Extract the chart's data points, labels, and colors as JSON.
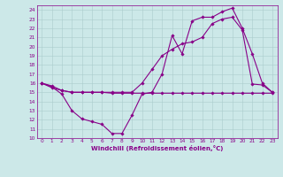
{
  "xlabel": "Windchill (Refroidissement éolien,°C)",
  "xlim": [
    -0.5,
    23.5
  ],
  "ylim": [
    10,
    24.5
  ],
  "yticks": [
    10,
    11,
    12,
    13,
    14,
    15,
    16,
    17,
    18,
    19,
    20,
    21,
    22,
    23,
    24
  ],
  "xticks": [
    0,
    1,
    2,
    3,
    4,
    5,
    6,
    7,
    8,
    9,
    10,
    11,
    12,
    13,
    14,
    15,
    16,
    17,
    18,
    19,
    20,
    21,
    22,
    23
  ],
  "bg_color": "#cce8e8",
  "line_color": "#880088",
  "grid_color": "#aacccc",
  "line1_x": [
    0,
    1,
    2,
    3,
    4,
    5,
    6,
    7,
    8,
    9,
    10,
    11,
    12,
    13,
    14,
    15,
    16,
    17,
    18,
    19,
    20,
    21,
    22,
    23
  ],
  "line1_y": [
    16,
    15.6,
    14.8,
    13.0,
    12.1,
    11.8,
    11.5,
    10.5,
    10.5,
    12.5,
    14.8,
    15.0,
    17.0,
    21.2,
    19.2,
    22.8,
    23.2,
    23.2,
    23.8,
    24.2,
    22.0,
    19.2,
    16.0,
    15.0
  ],
  "line2_x": [
    0,
    1,
    2,
    3,
    4,
    5,
    6,
    7,
    8,
    9,
    10,
    11,
    12,
    13,
    14,
    15,
    16,
    17,
    18,
    19,
    20,
    21,
    22,
    23
  ],
  "line2_y": [
    16,
    15.5,
    15.2,
    15.0,
    15.0,
    15.0,
    15.0,
    14.9,
    14.9,
    14.9,
    14.9,
    14.9,
    14.9,
    14.9,
    14.9,
    14.9,
    14.9,
    14.9,
    14.9,
    14.9,
    14.9,
    14.9,
    14.9,
    14.9
  ],
  "line3_x": [
    0,
    1,
    2,
    3,
    4,
    5,
    6,
    7,
    8,
    9,
    10,
    11,
    12,
    13,
    14,
    15,
    16,
    17,
    18,
    19,
    20,
    21,
    22,
    23
  ],
  "line3_y": [
    16,
    15.7,
    15.2,
    15.0,
    15.0,
    15.0,
    15.0,
    15.0,
    15.0,
    15.0,
    16.0,
    17.5,
    19.0,
    19.7,
    20.3,
    20.5,
    21.0,
    22.5,
    23.0,
    23.2,
    21.8,
    15.9,
    15.8,
    15.0
  ]
}
